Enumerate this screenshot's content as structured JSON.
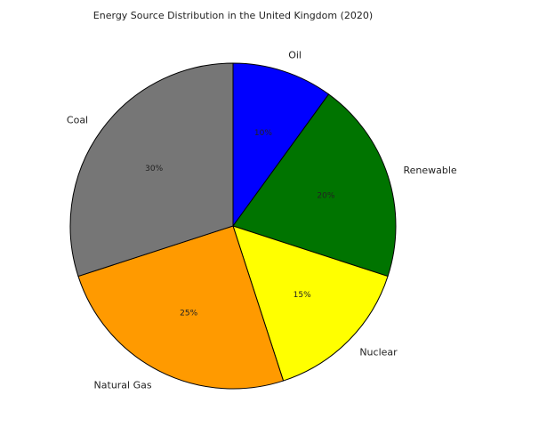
{
  "chart_data": {
    "type": "pie",
    "title": "Energy Source Distribution in the United Kingdom (2020)",
    "start_angle_deg": 90,
    "direction": "clockwise",
    "legend": "none",
    "slices": [
      {
        "label": "Oil",
        "value": 10,
        "pct_label": "10%",
        "color": "#0000ff"
      },
      {
        "label": "Renewable",
        "value": 20,
        "pct_label": "20%",
        "color": "#007400"
      },
      {
        "label": "Nuclear",
        "value": 15,
        "pct_label": "15%",
        "color": "#ffff00"
      },
      {
        "label": "Natural Gas",
        "value": 25,
        "pct_label": "25%",
        "color": "#ff9a00"
      },
      {
        "label": "Coal",
        "value": 30,
        "pct_label": "30%",
        "color": "#767676"
      }
    ]
  }
}
